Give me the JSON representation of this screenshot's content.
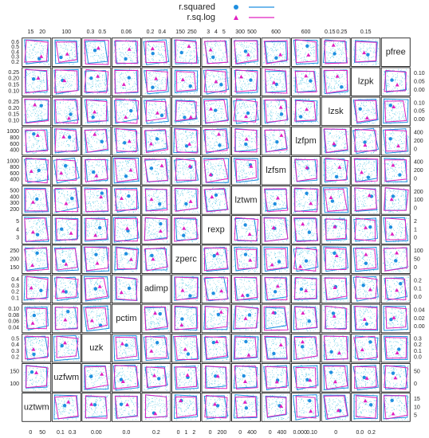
{
  "legend": {
    "items": [
      {
        "label": "r.squared",
        "color": "#1f8fe0"
      },
      {
        "label": "r.sq.log",
        "color": "#e020c0"
      }
    ]
  },
  "variables": [
    "uztwm",
    "uzfwm",
    "uzk",
    "pctim",
    "adimp",
    "zperc",
    "rexp",
    "lztwm",
    "lzfsm",
    "lzfpm",
    "lzsk",
    "lzpk",
    "pfree"
  ],
  "axes": {
    "top": [
      [
        "15",
        "20"
      ],
      [
        "100"
      ],
      [
        "0.3",
        "0.5"
      ],
      [
        "0.06"
      ],
      [
        "0.2",
        "0.4"
      ],
      [
        "150",
        "250"
      ],
      [
        "3",
        "4",
        "5"
      ],
      [
        "300",
        "500"
      ],
      [
        "600"
      ],
      [
        "600"
      ],
      [
        "0.15",
        "0.25"
      ],
      [
        "0.15"
      ]
    ],
    "bottom": [
      [
        "0",
        "50"
      ],
      [
        "0.1",
        "0.3"
      ],
      [
        "0.00"
      ],
      [
        "0.0"
      ],
      [
        "0.2"
      ],
      [
        "0",
        "1",
        "2"
      ],
      [
        "0",
        "200"
      ],
      [
        "0",
        "400"
      ],
      [
        "0",
        "400"
      ],
      [
        "0.000",
        "0.10"
      ],
      [
        "0"
      ],
      [
        "0.0",
        "0.2"
      ]
    ],
    "left": [
      [
        "0.6",
        "0.5",
        "0.4",
        "0.3",
        "0.2"
      ],
      [
        "0.25",
        "0.20",
        "0.15",
        "0.10"
      ],
      [
        "0.25",
        "0.20",
        "0.15",
        "0.10"
      ],
      [
        "1000",
        "800",
        "600",
        "400"
      ],
      [
        "1000",
        "800",
        "600",
        "400"
      ],
      [
        "500",
        "400",
        "300",
        "200"
      ],
      [
        "5",
        "4",
        "3"
      ],
      [
        "250",
        "200",
        "150"
      ],
      [
        "0.4",
        "0.3",
        "0.2",
        "0.1"
      ],
      [
        "0.10",
        "0.08",
        "0.06",
        "0.04"
      ],
      [
        "0.5",
        "0.4",
        "0.3",
        "0.2"
      ],
      [
        "150",
        "100"
      ]
    ],
    "right": [
      [
        "0.10",
        "0.05",
        "0.00"
      ],
      [
        "0.10",
        "0.05",
        "0.00"
      ],
      [
        "400",
        "200",
        "0"
      ],
      [
        "400",
        "200",
        "0"
      ],
      [
        "200",
        "100",
        "0"
      ],
      [
        "2",
        "1",
        "0"
      ],
      [
        "100",
        "50",
        "0"
      ],
      [
        "0.2",
        "0.1",
        "0.0"
      ],
      [
        "0.04",
        "0.02",
        "0.00"
      ],
      [
        "0.3",
        "0.2",
        "0.1",
        "0.0"
      ],
      [
        "50",
        "0"
      ],
      [
        "15",
        "10",
        "5"
      ]
    ]
  }
}
